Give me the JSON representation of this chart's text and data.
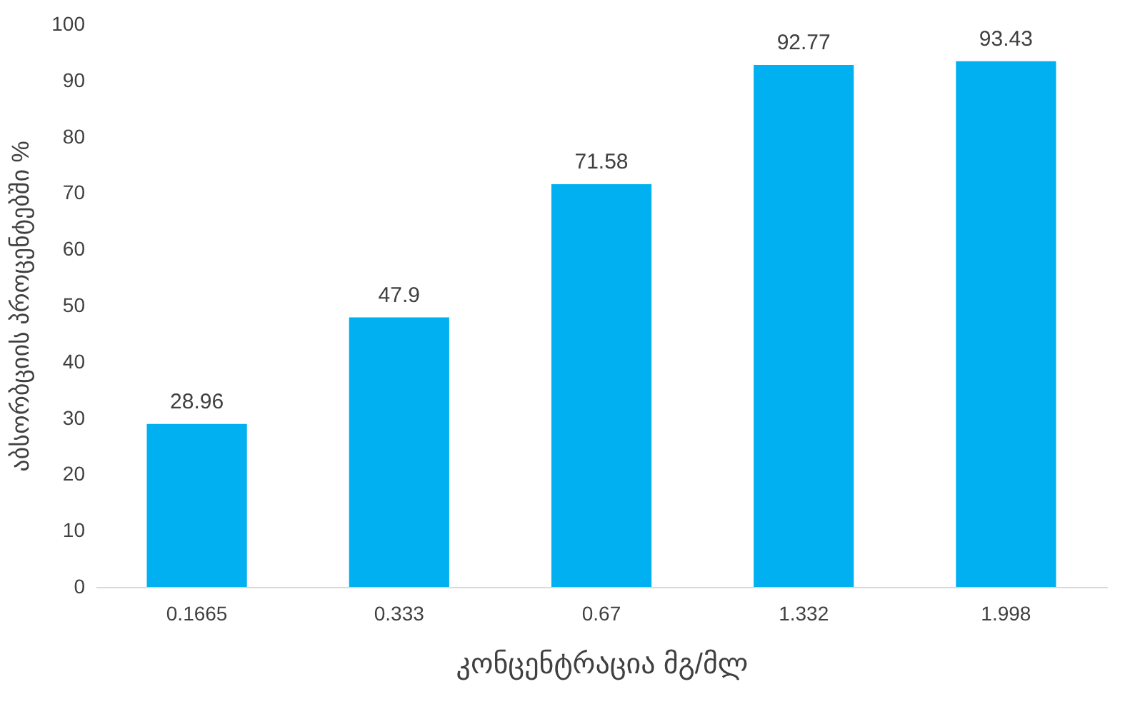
{
  "chart_data": {
    "type": "bar",
    "xlabel": "კონცენტრაცია მგ/მლ",
    "ylabel": "აბსორბციის პროცენტებში %",
    "categories": [
      "0.1665",
      "0.333",
      "0.67",
      "1.332",
      "1.998"
    ],
    "values": [
      28.96,
      47.9,
      71.58,
      92.77,
      93.43
    ],
    "color": "#00b0f0",
    "ylim": [
      0,
      100
    ],
    "yticks": [
      0,
      10,
      20,
      30,
      40,
      50,
      60,
      70,
      80,
      90,
      100
    ],
    "data_labels": true
  }
}
